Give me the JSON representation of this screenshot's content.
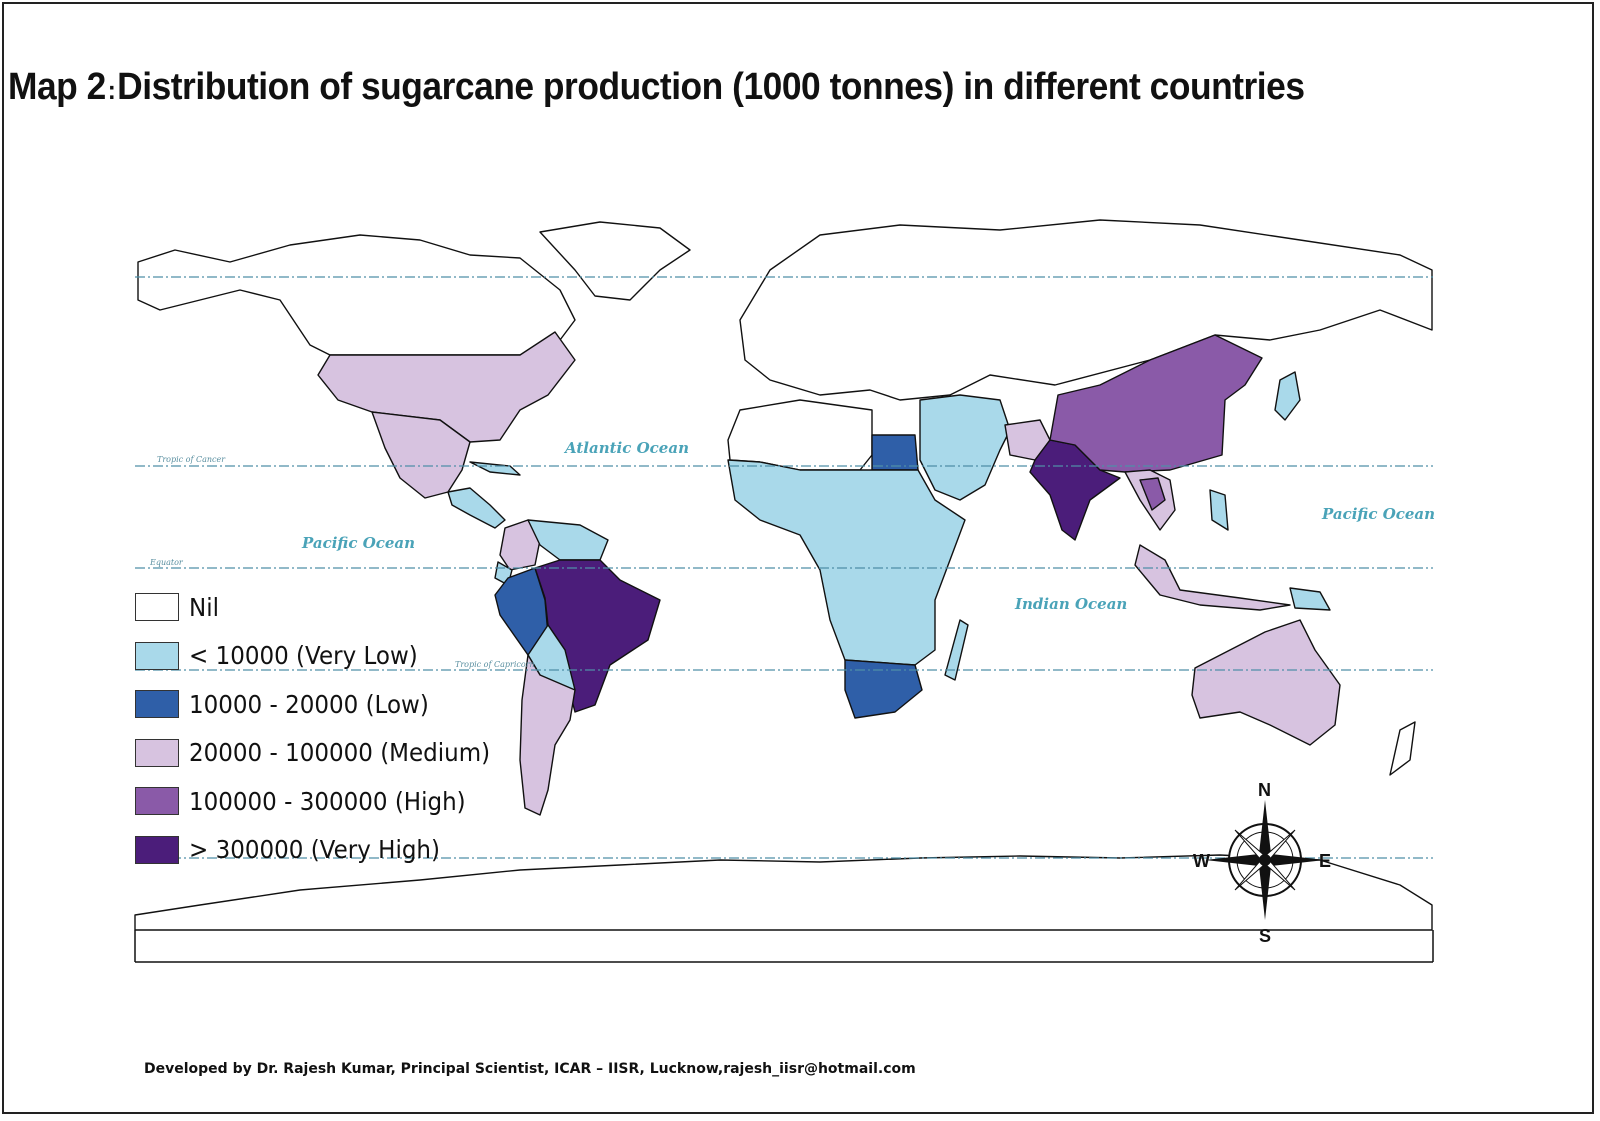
{
  "title": {
    "prefix": "Map 2",
    "separator": ":",
    "text": "Distribution of sugarcane production (1000 tonnes) in different countries"
  },
  "map_labels": {
    "oceans": [
      "Atlantic Ocean",
      "Pacific Ocean",
      "Pacific Ocean",
      "Indian Ocean"
    ],
    "latitudes": {
      "tropic_of_cancer": "Tropic of Cancer",
      "equator": "Equator",
      "tropic_of_capricorn": "Tropic of Capricorn"
    }
  },
  "legend": [
    {
      "key": "nil",
      "label": "Nil",
      "color": "#ffffff"
    },
    {
      "key": "very_low",
      "label": "< 10000  (Very Low)",
      "color": "#a9d9ea"
    },
    {
      "key": "low",
      "label": "10000 - 20000  (Low)",
      "color": "#2f5fa8"
    },
    {
      "key": "medium",
      "label": "20000 - 100000 (Medium)",
      "color": "#d7c3e0"
    },
    {
      "key": "high",
      "label": "100000 - 300000  (High)",
      "color": "#8a5aa8"
    },
    {
      "key": "very_high",
      "label": "> 300000  (Very High)",
      "color": "#4b1d7a"
    }
  ],
  "compass": {
    "n": "N",
    "s": "S",
    "e": "E",
    "w": "W"
  },
  "footer": "Developed by Dr. Rajesh Kumar, Principal Scientist, ICAR – IISR, Lucknow,rajesh_iisr@hotmail.com"
}
